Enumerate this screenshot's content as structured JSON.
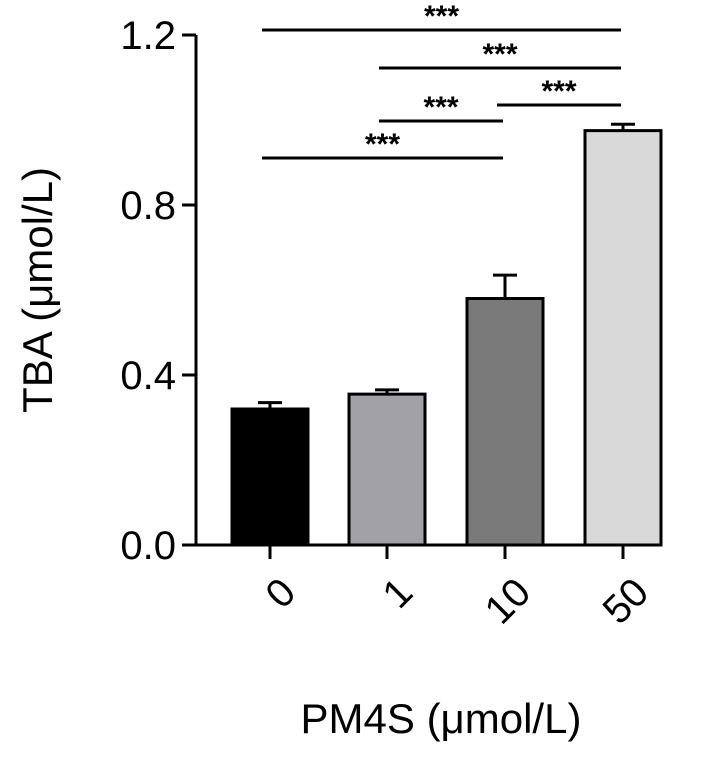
{
  "chart_data": {
    "type": "bar",
    "title": "",
    "xlabel": "PM4S (μmol/L)",
    "ylabel": "TBA (μmol/L)",
    "ylim": [
      0,
      1.2
    ],
    "yticks": [
      "0.0",
      "0.4",
      "0.8",
      "1.2"
    ],
    "ytick_values": [
      0,
      0.4,
      0.8,
      1.2
    ],
    "categories": [
      "0",
      "1",
      "10",
      "50"
    ],
    "values": [
      0.32,
      0.355,
      0.58,
      0.975
    ],
    "errors": [
      0.015,
      0.01,
      0.055,
      0.015
    ],
    "bar_colors": [
      "#000000",
      "#a1a1a6",
      "#7a7a7a",
      "#d9d9d9"
    ],
    "significance": [
      {
        "from": 0,
        "to": 3,
        "label": "***"
      },
      {
        "from": 1,
        "to": 3,
        "label": "***"
      },
      {
        "from": 1,
        "to": 2,
        "label": "***"
      },
      {
        "from": 2,
        "to": 3,
        "label": "***"
      },
      {
        "from": 0,
        "to": 2,
        "label": "***"
      }
    ],
    "grid": false,
    "legend": "none"
  }
}
